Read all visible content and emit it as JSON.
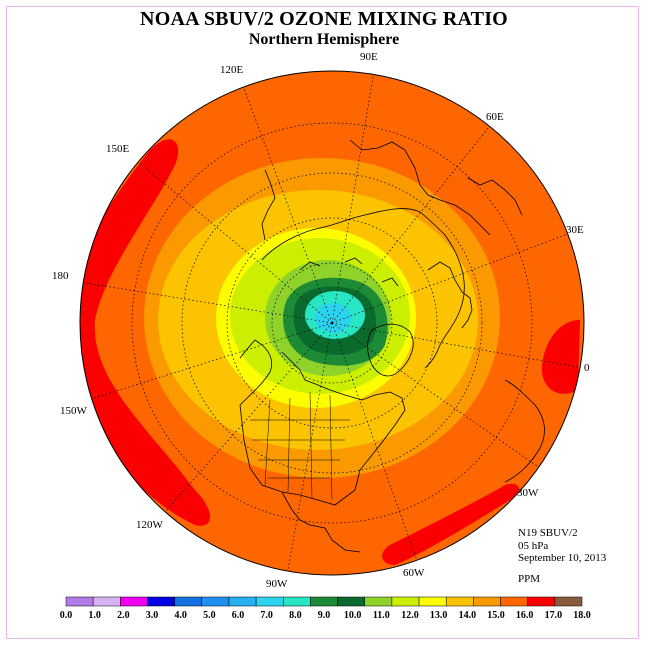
{
  "header": {
    "title": "NOAA SBUV/2 OZONE MIXING RATIO",
    "subtitle": "Northern Hemisphere"
  },
  "map": {
    "projection": "north-polar-stereographic",
    "longitude_labels": [
      "90E",
      "60E",
      "30E",
      "0",
      "30W",
      "60W",
      "90W",
      "120W",
      "150W",
      "180",
      "150E",
      "120E"
    ],
    "colors": {
      "outer_band": "#fd6600",
      "high_band": "#fb0000",
      "band_15": "#fa9a00",
      "band_14": "#fbc300",
      "band_13": "#fdfd00",
      "band_12": "#ccee00",
      "band_11": "#8fd22a",
      "band_10": "#1d8a35",
      "band_9": "#0a6a2e",
      "band_8": "#28e6c3",
      "band_7": "#2bd3ee",
      "land_outline": "#000000"
    }
  },
  "info": {
    "satellite": "N19 SBUV/2",
    "level": "05 hPa",
    "date": "September 10, 2013",
    "units": "PPM"
  },
  "colorbar": {
    "colors": [
      "#b07ce8",
      "#d7b4f1",
      "#f000f0",
      "#0000e0",
      "#1270e0",
      "#1f8ff0",
      "#26b0f0",
      "#2bd3ee",
      "#28e6c3",
      "#1d8a35",
      "#0a6a2e",
      "#8fd22a",
      "#ccee00",
      "#fdfd00",
      "#fbc300",
      "#fa9a00",
      "#fd6600",
      "#fb0000",
      "#8a5a3c"
    ],
    "labels": [
      "0.0",
      "1.0",
      "2.0",
      "3.0",
      "4.0",
      "5.0",
      "6.0",
      "7.0",
      "8.0",
      "9.0",
      "10.0",
      "11.0",
      "12.0",
      "13.0",
      "14.0",
      "15.0",
      "16.0",
      "17.0",
      "18.0"
    ]
  }
}
